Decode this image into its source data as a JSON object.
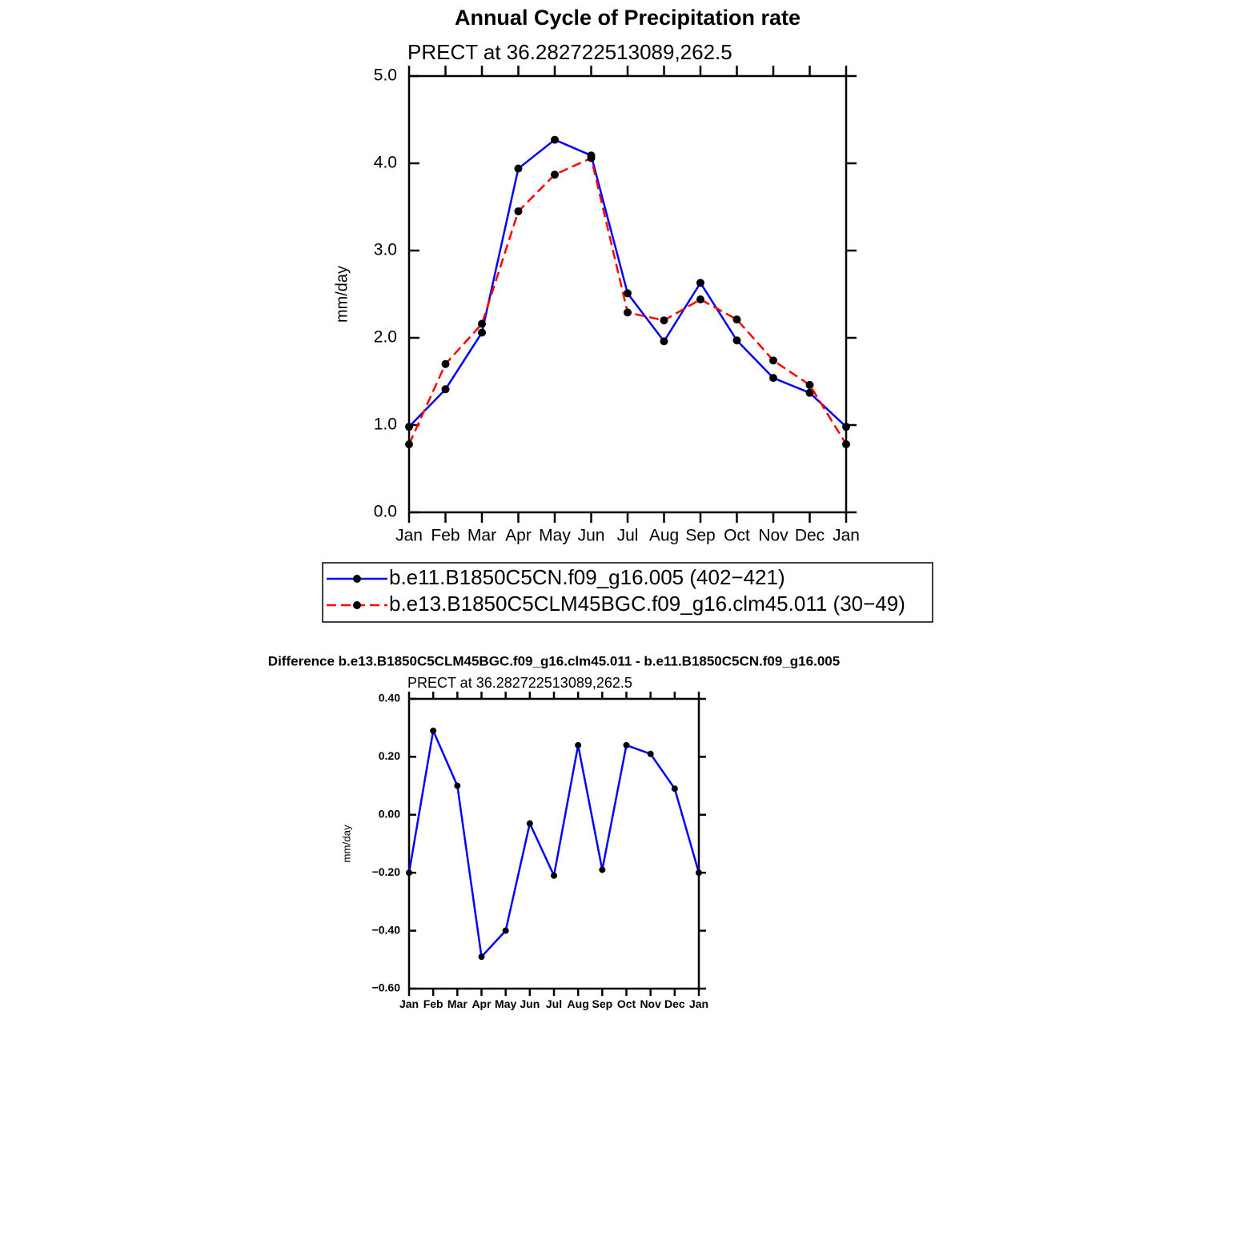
{
  "chart_data": [
    {
      "type": "line",
      "title": "Annual Cycle of Precipitation rate",
      "subtitle": "PRECT at 36.282722513089,262.5",
      "y_label": "mm/day",
      "categories": [
        "Jan",
        "Feb",
        "Mar",
        "Apr",
        "May",
        "Jun",
        "Jul",
        "Aug",
        "Sep",
        "Oct",
        "Nov",
        "Dec",
        "Jan"
      ],
      "series": [
        {
          "name": "b.e11.B1850C5CN.f09_g16.005 (402−421)",
          "color": "#0000ff",
          "dashed": false,
          "values": [
            0.98,
            1.41,
            2.06,
            3.94,
            4.27,
            4.09,
            2.51,
            1.96,
            2.63,
            1.97,
            1.54,
            1.37,
            0.98
          ]
        },
        {
          "name": "b.e13.B1850C5CLM45BGC.f09_g16.clm45.011 (30−49)",
          "color": "#ff0000",
          "dashed": true,
          "values": [
            0.78,
            1.7,
            2.16,
            3.45,
            3.87,
            4.06,
            2.29,
            2.2,
            2.44,
            2.21,
            1.74,
            1.46,
            0.78
          ]
        }
      ],
      "marker_color": "#000000",
      "ylim": [
        0,
        5
      ],
      "yticks": [
        {
          "value": 0,
          "label": "0.0"
        },
        {
          "value": 1,
          "label": "1.0"
        },
        {
          "value": 2,
          "label": "2.0"
        },
        {
          "value": 3,
          "label": "3.0"
        },
        {
          "value": 4,
          "label": "4.0"
        },
        {
          "value": 5,
          "label": "5.0"
        }
      ],
      "legend": "below"
    },
    {
      "type": "line",
      "title": "Difference b.e13.B1850C5CLM45BGC.f09_g16.clm45.011 - b.e11.B1850C5CN.f09_g16.005",
      "subtitle": "PRECT at 36.282722513089,262.5",
      "y_label": "mm/day",
      "categories": [
        "Jan",
        "Feb",
        "Mar",
        "Apr",
        "May",
        "Jun",
        "Jul",
        "Aug",
        "Sep",
        "Oct",
        "Nov",
        "Dec",
        "Jan"
      ],
      "series": [
        {
          "color": "#0000ff",
          "dashed": false,
          "values": [
            -0.2,
            0.29,
            0.1,
            -0.49,
            -0.4,
            -0.03,
            -0.21,
            0.24,
            -0.19,
            0.24,
            0.21,
            0.09,
            -0.2
          ]
        }
      ],
      "marker_color": "#000000",
      "ylim": [
        -0.6,
        0.4
      ],
      "yticks": [
        {
          "value": -0.6,
          "label": "−0.60"
        },
        {
          "value": -0.4,
          "label": "−0.40"
        },
        {
          "value": -0.2,
          "label": "−0.20"
        },
        {
          "value": 0,
          "label": "0.00"
        },
        {
          "value": 0.2,
          "label": "0.20"
        },
        {
          "value": 0.4,
          "label": "0.40"
        }
      ]
    }
  ]
}
